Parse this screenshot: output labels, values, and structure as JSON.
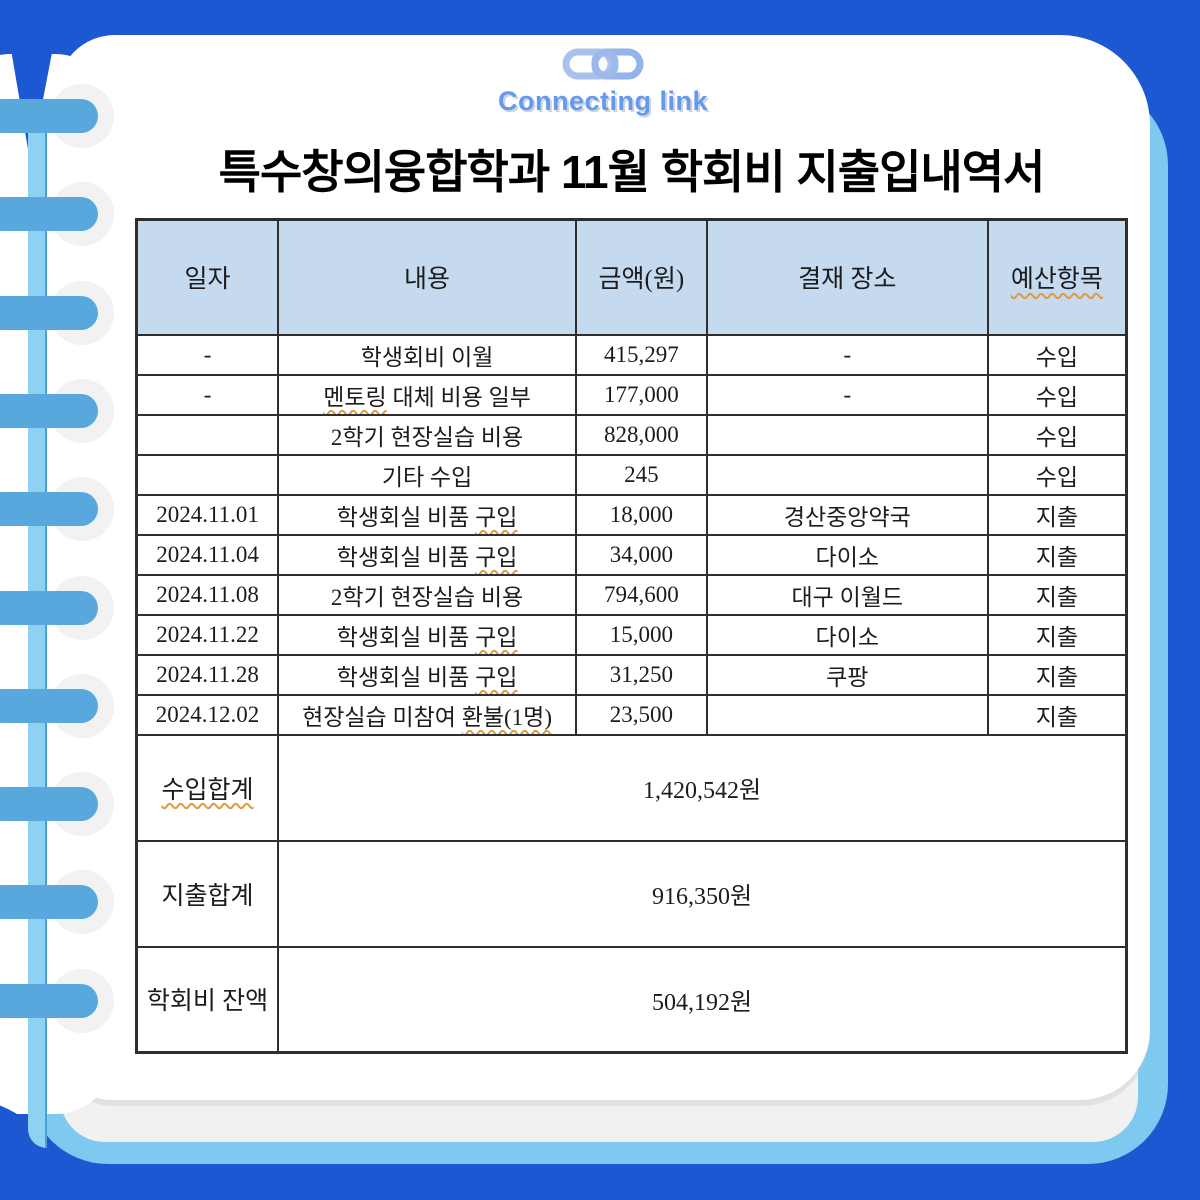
{
  "brand": {
    "name": "Connecting link",
    "icon": "chain-link-icon"
  },
  "title": "특수창의융합학과 11월 학회비 지출입내역서",
  "table": {
    "headers": [
      {
        "label": "일자",
        "spell": false
      },
      {
        "label": "내용",
        "spell": false
      },
      {
        "label": "금액(원)",
        "spell": false
      },
      {
        "label": "결재 장소",
        "spell": false
      },
      {
        "label": "예산항목",
        "spell": true
      }
    ],
    "rows": [
      {
        "date": "-",
        "content": [
          {
            "t": "학생회비 이월"
          }
        ],
        "amount": "415,297",
        "place": "-",
        "budget": "수입"
      },
      {
        "date": "-",
        "content": [
          {
            "t": "멘토링",
            "spell": true
          },
          {
            "t": " 대체 비용 일부"
          }
        ],
        "amount": "177,000",
        "place": "-",
        "budget": "수입"
      },
      {
        "date": "",
        "content": [
          {
            "t": "2학기 현장실습 비용"
          }
        ],
        "amount": "828,000",
        "place": "",
        "budget": "수입"
      },
      {
        "date": "",
        "content": [
          {
            "t": "기타 수입"
          }
        ],
        "amount": "245",
        "place": "",
        "budget": "수입"
      },
      {
        "date": "2024.11.01",
        "content": [
          {
            "t": "학생회실 비품 "
          },
          {
            "t": "구입",
            "spell": true
          }
        ],
        "amount": "18,000",
        "place": "경산중앙약국",
        "budget": "지출"
      },
      {
        "date": "2024.11.04",
        "content": [
          {
            "t": "학생회실 비품 "
          },
          {
            "t": "구입",
            "spell": true
          }
        ],
        "amount": "34,000",
        "place": "다이소",
        "budget": "지출"
      },
      {
        "date": "2024.11.08",
        "content": [
          {
            "t": "2학기 현장실습 비용"
          }
        ],
        "amount": "794,600",
        "place": "대구 이월드",
        "budget": "지출"
      },
      {
        "date": "2024.11.22",
        "content": [
          {
            "t": "학생회실 비품 "
          },
          {
            "t": "구입",
            "spell": true
          }
        ],
        "amount": "15,000",
        "place": "다이소",
        "budget": "지출"
      },
      {
        "date": "2024.11.28",
        "content": [
          {
            "t": "학생회실 비품 "
          },
          {
            "t": "구입",
            "spell": true
          }
        ],
        "amount": "31,250",
        "place": "쿠팡",
        "budget": "지출"
      },
      {
        "date": "2024.12.02",
        "content": [
          {
            "t": "현장실습 미참여 "
          },
          {
            "t": "환불(1명)",
            "spell": true
          }
        ],
        "amount": "23,500",
        "place": "",
        "budget": "지출"
      }
    ],
    "summary": [
      {
        "label": "수입합계",
        "spell": true,
        "value": "1,420,542원"
      },
      {
        "label": "지출합계",
        "spell": false,
        "value": "916,350원"
      },
      {
        "label": "학회비 잔액",
        "spell": false,
        "value": "504,192원"
      }
    ]
  },
  "colors": {
    "background": "#1c58d2",
    "notebook_edge": "#7dc9f0",
    "strip": "#8ed1f3",
    "ring": "#58a8de",
    "hole": "#f2f2f2",
    "back_page": "#f1f1f1",
    "header_bg": "#c5d9ef",
    "border": "#2e2e2e",
    "spell_underline": "#e09a3e",
    "logo_blue": "#639af0"
  }
}
